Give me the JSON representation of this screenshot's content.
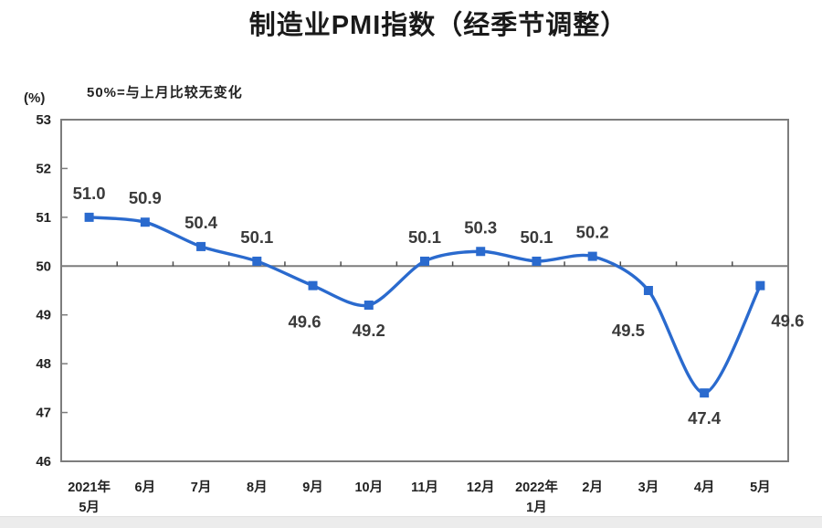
{
  "page": {
    "background": "#ffffff",
    "footer_strip_color": "#ececec"
  },
  "chart_data": {
    "type": "line",
    "title": "制造业PMI指数（经季节调整）",
    "note": "50%=与上月比较无变化",
    "unit_label": "(%)",
    "categories": [
      "2021年\n5月",
      "6月",
      "7月",
      "8月",
      "9月",
      "10月",
      "11月",
      "12月",
      "2022年\n1月",
      "2月",
      "3月",
      "4月",
      "5月"
    ],
    "values": [
      51.0,
      50.9,
      50.4,
      50.1,
      49.6,
      49.2,
      50.1,
      50.3,
      50.1,
      50.2,
      49.5,
      47.4,
      49.6
    ],
    "data_labels": [
      "51.0",
      "50.9",
      "50.4",
      "50.1",
      "49.6",
      "49.2",
      "50.1",
      "50.3",
      "50.1",
      "50.2",
      "49.5",
      "47.4",
      "49.6"
    ],
    "ylim": [
      46,
      53
    ],
    "yticks": [
      53,
      52,
      51,
      50,
      49,
      48,
      47,
      46
    ],
    "reference_line": 50,
    "grid": "off",
    "legend": "none",
    "colors": {
      "series": "#2a6ace",
      "data_label": "#3a3a3a",
      "axis_line": "#7d7d7d",
      "tick_text": "#222222"
    }
  }
}
